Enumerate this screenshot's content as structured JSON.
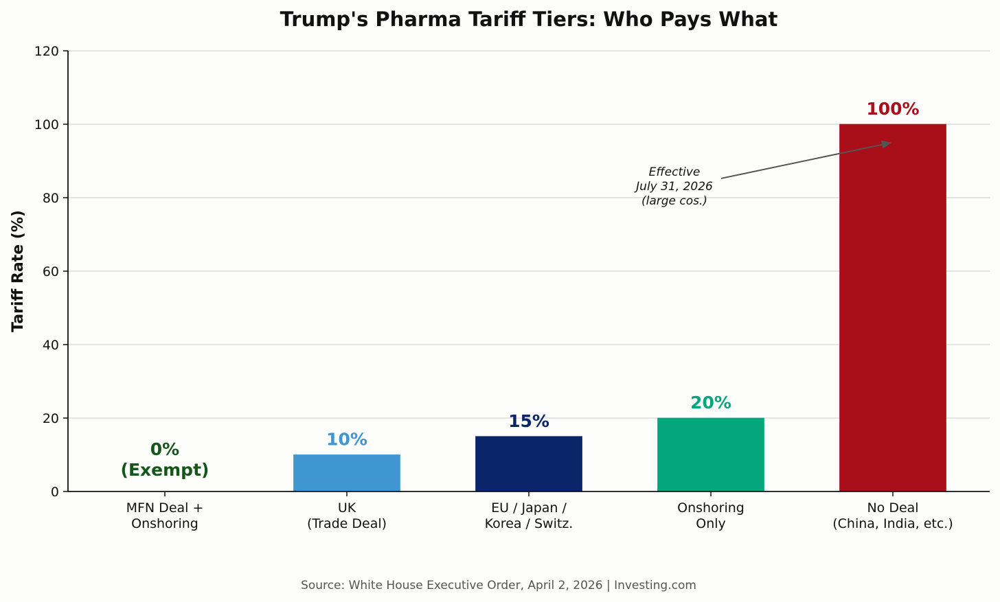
{
  "chart_data": {
    "type": "bar",
    "title": "Trump's Pharma Tariff Tiers: Who Pays What",
    "xlabel": "",
    "ylabel": "Tariff Rate (%)",
    "ylim": [
      0,
      120
    ],
    "yticks": [
      "0",
      "20",
      "40",
      "60",
      "80",
      "100",
      "120"
    ],
    "grid": "horizontal",
    "categories": [
      [
        "MFN Deal +",
        "Onshoring"
      ],
      [
        "UK",
        "(Trade Deal)"
      ],
      [
        "EU / Japan /",
        "Korea / Switz."
      ],
      [
        "Onshoring",
        "Only"
      ],
      [
        "No Deal",
        "(China, India, etc.)"
      ]
    ],
    "values": [
      0,
      10,
      15,
      20,
      100
    ],
    "data_labels": [
      [
        "0%",
        "(Exempt)"
      ],
      [
        "10%"
      ],
      [
        "15%"
      ],
      [
        "20%"
      ],
      [
        "100%"
      ]
    ],
    "colors": [
      "#15561a",
      "#3f96d1",
      "#0a2569",
      "#04a67b",
      "#a90f18"
    ],
    "annotation": {
      "lines": [
        "Effective",
        "July 31, 2026",
        "(large cos.)"
      ],
      "text_at": [
        2.8,
        83
      ],
      "arrow_to": [
        4.0,
        95
      ]
    },
    "source": "Source: White House Executive Order, April 2, 2026 | Investing.com"
  }
}
